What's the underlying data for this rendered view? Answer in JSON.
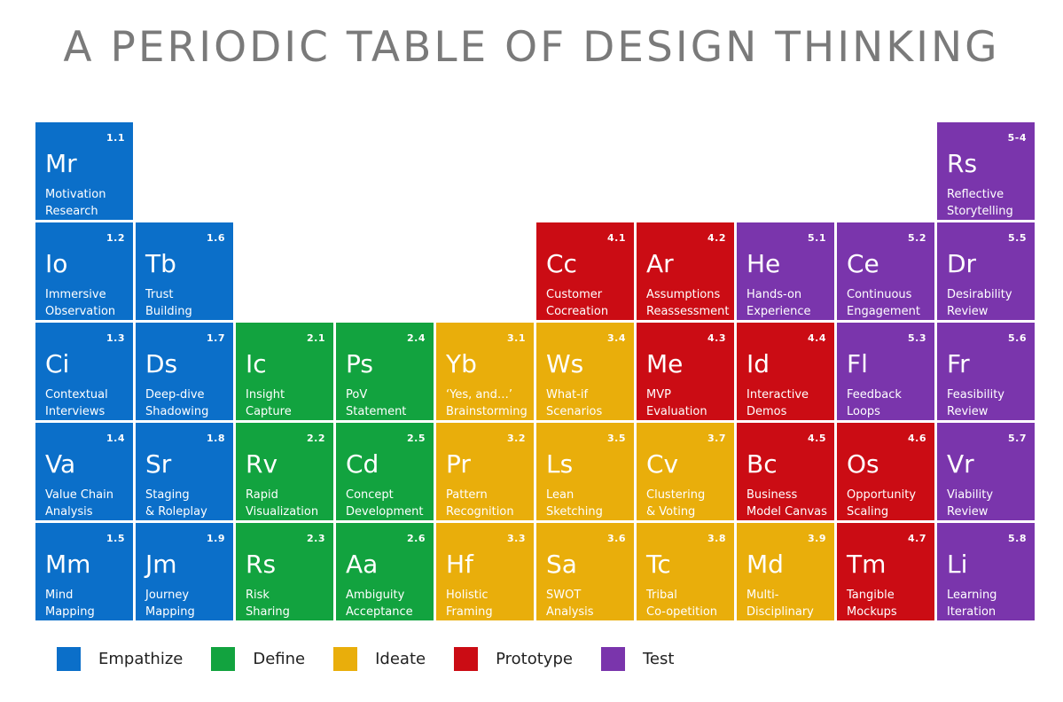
{
  "title": "A PERIODIC TABLE OF DESIGN THINKING",
  "colors": {
    "empathize": "#0b6fc9",
    "define": "#12a33f",
    "ideate": "#e9ae0b",
    "prototype": "#cb0c14",
    "test": "#7a35ac"
  },
  "elements": [
    {
      "num": "1.1",
      "sym": "Mr",
      "name": "Motivation\nResearch",
      "cat": "empathize",
      "row": 0,
      "col": 0
    },
    {
      "num": "1.2",
      "sym": "Io",
      "name": "Immersive\nObservation",
      "cat": "empathize",
      "row": 1,
      "col": 0
    },
    {
      "num": "1.3",
      "sym": "Ci",
      "name": "Contextual\nInterviews",
      "cat": "empathize",
      "row": 2,
      "col": 0
    },
    {
      "num": "1.4",
      "sym": "Va",
      "name": "Value Chain\nAnalysis",
      "cat": "empathize",
      "row": 3,
      "col": 0
    },
    {
      "num": "1.5",
      "sym": "Mm",
      "name": "Mind\nMapping",
      "cat": "empathize",
      "row": 4,
      "col": 0
    },
    {
      "num": "1.6",
      "sym": "Tb",
      "name": "Trust\nBuilding",
      "cat": "empathize",
      "row": 1,
      "col": 1
    },
    {
      "num": "1.7",
      "sym": "Ds",
      "name": "Deep-dive\nShadowing",
      "cat": "empathize",
      "row": 2,
      "col": 1
    },
    {
      "num": "1.8",
      "sym": "Sr",
      "name": "Staging\n& Roleplay",
      "cat": "empathize",
      "row": 3,
      "col": 1
    },
    {
      "num": "1.9",
      "sym": "Jm",
      "name": "Journey\nMapping",
      "cat": "empathize",
      "row": 4,
      "col": 1
    },
    {
      "num": "2.1",
      "sym": "Ic",
      "name": "Insight\nCapture",
      "cat": "define",
      "row": 2,
      "col": 2
    },
    {
      "num": "2.2",
      "sym": "Rv",
      "name": "Rapid\nVisualization",
      "cat": "define",
      "row": 3,
      "col": 2
    },
    {
      "num": "2.3",
      "sym": "Rs",
      "name": "Risk\nSharing",
      "cat": "define",
      "row": 4,
      "col": 2
    },
    {
      "num": "2.4",
      "sym": "Ps",
      "name": "PoV\nStatement",
      "cat": "define",
      "row": 2,
      "col": 3
    },
    {
      "num": "2.5",
      "sym": "Cd",
      "name": "Concept\nDevelopment",
      "cat": "define",
      "row": 3,
      "col": 3
    },
    {
      "num": "2.6",
      "sym": "Aa",
      "name": "Ambiguity\nAcceptance",
      "cat": "define",
      "row": 4,
      "col": 3
    },
    {
      "num": "3.1",
      "sym": "Yb",
      "name": "‘Yes, and…’\nBrainstorming",
      "cat": "ideate",
      "row": 2,
      "col": 4
    },
    {
      "num": "3.2",
      "sym": "Pr",
      "name": "Pattern\nRecognition",
      "cat": "ideate",
      "row": 3,
      "col": 4
    },
    {
      "num": "3.3",
      "sym": "Hf",
      "name": "Holistic\nFraming",
      "cat": "ideate",
      "row": 4,
      "col": 4
    },
    {
      "num": "3.4",
      "sym": "Ws",
      "name": "What-if\nScenarios",
      "cat": "ideate",
      "row": 2,
      "col": 5
    },
    {
      "num": "3.5",
      "sym": "Ls",
      "name": "Lean\nSketching",
      "cat": "ideate",
      "row": 3,
      "col": 5
    },
    {
      "num": "3.6",
      "sym": "Sa",
      "name": "SWOT\nAnalysis",
      "cat": "ideate",
      "row": 4,
      "col": 5
    },
    {
      "num": "3.7",
      "sym": "Cv",
      "name": "Clustering\n& Voting",
      "cat": "ideate",
      "row": 3,
      "col": 6
    },
    {
      "num": "3.8",
      "sym": "Tc",
      "name": "Tribal\nCo-opetition",
      "cat": "ideate",
      "row": 4,
      "col": 6
    },
    {
      "num": "3.9",
      "sym": "Md",
      "name": "Multi-\nDisciplinary",
      "cat": "ideate",
      "row": 4,
      "col": 7
    },
    {
      "num": "4.1",
      "sym": "Cc",
      "name": "Customer\nCocreation",
      "cat": "prototype",
      "row": 1,
      "col": 5
    },
    {
      "num": "4.2",
      "sym": "Ar",
      "name": "Assumptions\nReassessment",
      "cat": "prototype",
      "row": 1,
      "col": 6
    },
    {
      "num": "4.3",
      "sym": "Me",
      "name": "MVP\nEvaluation",
      "cat": "prototype",
      "row": 2,
      "col": 6
    },
    {
      "num": "4.4",
      "sym": "Id",
      "name": "Interactive\nDemos",
      "cat": "prototype",
      "row": 2,
      "col": 7
    },
    {
      "num": "4.5",
      "sym": "Bc",
      "name": "Business\nModel Canvas",
      "cat": "prototype",
      "row": 3,
      "col": 7
    },
    {
      "num": "4.6",
      "sym": "Os",
      "name": "Opportunity\nScaling",
      "cat": "prototype",
      "row": 3,
      "col": 8
    },
    {
      "num": "4.7",
      "sym": "Tm",
      "name": "Tangible\nMockups",
      "cat": "prototype",
      "row": 4,
      "col": 8
    },
    {
      "num": "5.1",
      "sym": "He",
      "name": "Hands-on\nExperience",
      "cat": "test",
      "row": 1,
      "col": 7
    },
    {
      "num": "5.2",
      "sym": "Ce",
      "name": "Continuous\nEngagement",
      "cat": "test",
      "row": 1,
      "col": 8
    },
    {
      "num": "5.3",
      "sym": "Fl",
      "name": "Feedback\nLoops",
      "cat": "test",
      "row": 2,
      "col": 8
    },
    {
      "num": "5-4",
      "sym": "Rs",
      "name": "Reflective\nStorytelling",
      "cat": "test",
      "row": 0,
      "col": 9
    },
    {
      "num": "5.5",
      "sym": "Dr",
      "name": "Desirability\nReview",
      "cat": "test",
      "row": 1,
      "col": 9
    },
    {
      "num": "5.6",
      "sym": "Fr",
      "name": "Feasibility\nReview",
      "cat": "test",
      "row": 2,
      "col": 9
    },
    {
      "num": "5.7",
      "sym": "Vr",
      "name": "Viability\nReview",
      "cat": "test",
      "row": 3,
      "col": 9
    },
    {
      "num": "5.8",
      "sym": "Li",
      "name": "Learning\nIteration",
      "cat": "test",
      "row": 4,
      "col": 9
    }
  ],
  "legend": [
    {
      "label": "Empathize",
      "cat": "empathize"
    },
    {
      "label": "Define",
      "cat": "define"
    },
    {
      "label": "Ideate",
      "cat": "ideate"
    },
    {
      "label": "Prototype",
      "cat": "prototype"
    },
    {
      "label": "Test",
      "cat": "test"
    }
  ]
}
